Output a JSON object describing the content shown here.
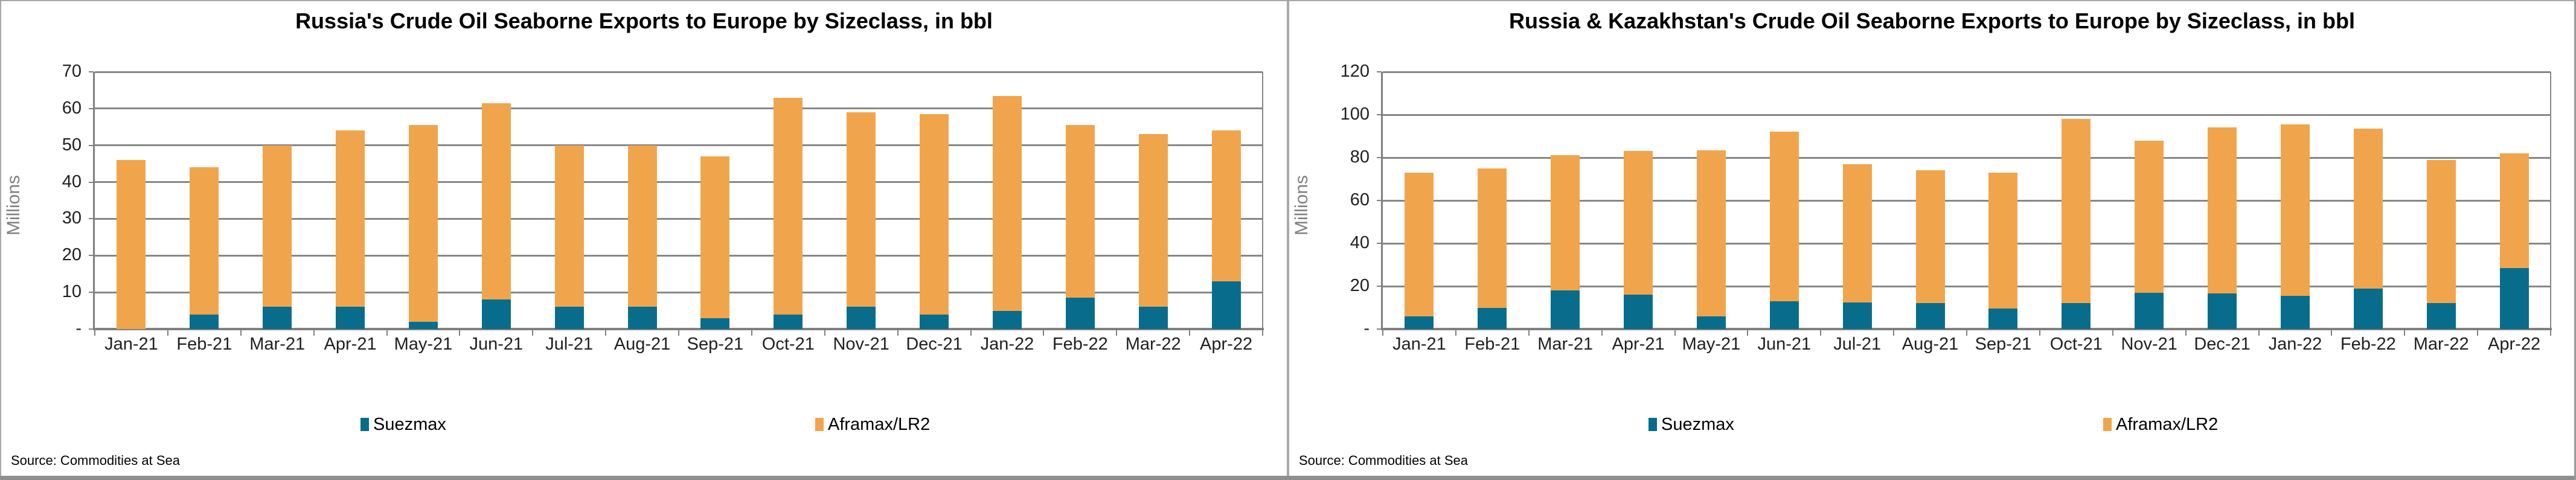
{
  "chart_data": [
    {
      "type": "bar",
      "stacked": true,
      "title": "Russia's Crude Oil Seaborne Exports to Europe by Sizeclass, in bbl",
      "ylabel": "Millions",
      "xlabel": "",
      "ylim": [
        0,
        70
      ],
      "ytick_step": 10,
      "zero_tick_label": "-",
      "grid": true,
      "legend_position": "bottom",
      "categories": [
        "Jan-21",
        "Feb-21",
        "Mar-21",
        "Apr-21",
        "May-21",
        "Jun-21",
        "Jul-21",
        "Aug-21",
        "Sep-21",
        "Oct-21",
        "Nov-21",
        "Dec-21",
        "Jan-22",
        "Feb-22",
        "Mar-22",
        "Apr-22"
      ],
      "series": [
        {
          "name": "Suezmax",
          "color": "#086D8C",
          "values": [
            0,
            4,
            6,
            6,
            2,
            8,
            6,
            6,
            3,
            4,
            6,
            4,
            5,
            8.5,
            6,
            13
          ]
        },
        {
          "name": "Aframax/LR2",
          "color": "#F0A54C",
          "values": [
            46,
            40,
            44,
            48,
            53.5,
            53.5,
            44,
            44,
            44,
            59,
            53,
            54.5,
            58.5,
            47,
            47,
            41
          ]
        }
      ],
      "totals": [
        46,
        44,
        50,
        54,
        55.5,
        61.5,
        50,
        50,
        47,
        63,
        59,
        58.5,
        63.5,
        55.5,
        53,
        54
      ],
      "source": "Source: Commodities at Sea"
    },
    {
      "type": "bar",
      "stacked": true,
      "title": "Russia & Kazakhstan's Crude Oil Seaborne Exports to Europe by Sizeclass, in bbl",
      "ylabel": "Millions",
      "xlabel": "",
      "ylim": [
        0,
        120
      ],
      "ytick_step": 20,
      "zero_tick_label": "-",
      "grid": true,
      "legend_position": "bottom",
      "categories": [
        "Jan-21",
        "Feb-21",
        "Mar-21",
        "Apr-21",
        "May-21",
        "Jun-21",
        "Jul-21",
        "Aug-21",
        "Sep-21",
        "Oct-21",
        "Nov-21",
        "Dec-21",
        "Jan-22",
        "Feb-22",
        "Mar-22",
        "Apr-22"
      ],
      "series": [
        {
          "name": "Suezmax",
          "color": "#086D8C",
          "values": [
            6,
            10,
            18,
            16,
            6,
            13,
            12.5,
            12,
            9.5,
            12,
            17,
            16.5,
            15.5,
            19,
            12,
            28.5
          ]
        },
        {
          "name": "Aframax/LR2",
          "color": "#F0A54C",
          "values": [
            67,
            65,
            63,
            67,
            77.5,
            79,
            64.5,
            62,
            63.5,
            86,
            71,
            77.5,
            80,
            74.5,
            67,
            53.5
          ]
        }
      ],
      "totals": [
        73,
        75,
        81,
        83,
        83.5,
        92,
        77,
        74,
        73,
        98,
        88,
        94,
        95.5,
        93.5,
        79,
        82
      ],
      "source": "Source: Commodities at Sea"
    }
  ],
  "colors": {
    "suezmax": "#086D8C",
    "aframax_lr2": "#F0A54C",
    "gridline": "#878787",
    "axis": "#808080",
    "axis_title": "#808080",
    "tick_text": "#1f1f1f"
  }
}
